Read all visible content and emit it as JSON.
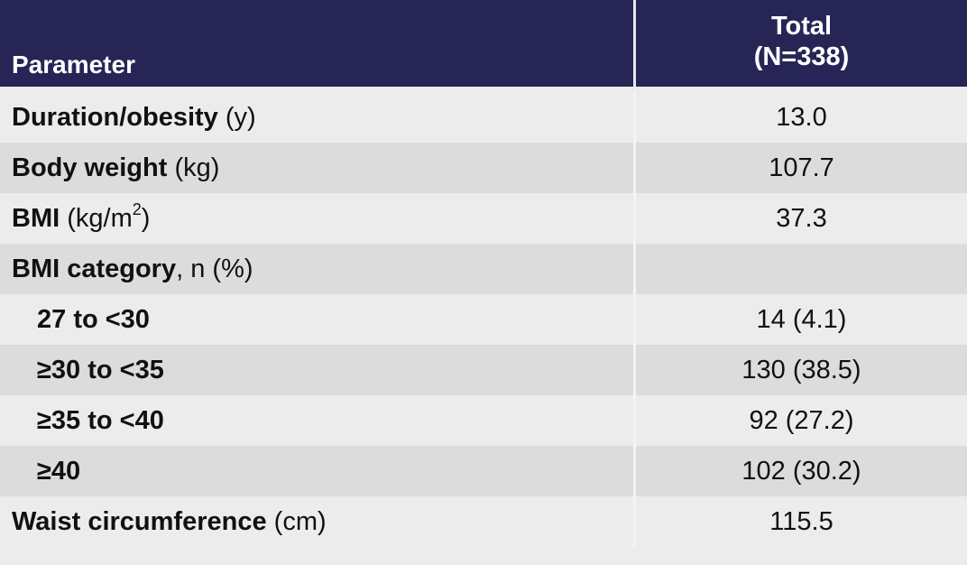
{
  "header": {
    "parameter_label": "Parameter",
    "total_label": "Total",
    "total_n": "(N=338)"
  },
  "rows": [
    {
      "bold": "Duration/obesity",
      "unit": " (y)",
      "value": "13.0"
    },
    {
      "bold": "Body weight",
      "unit": " (kg)",
      "value": "107.7"
    },
    {
      "bold": "BMI",
      "unit_pre": " (kg/m",
      "unit_sup": "2",
      "unit_post": ")",
      "value": "37.3"
    },
    {
      "bold": "BMI category",
      "unit": ", n (%)",
      "value": ""
    },
    {
      "bold": "27 to <30",
      "value": "14 (4.1)"
    },
    {
      "bold": "≥30 to <35",
      "value": "130 (38.5)"
    },
    {
      "bold": "≥35 to <40",
      "value": "92 (27.2)"
    },
    {
      "bold": "≥40",
      "value": "102 (30.2)"
    },
    {
      "bold": "Waist circumference",
      "unit": " (cm)",
      "value": "115.5"
    }
  ],
  "colors": {
    "header_bg": "#262556",
    "header_text": "#ffffff",
    "row_light": "#ececec",
    "row_dark": "#dcdcdc"
  }
}
